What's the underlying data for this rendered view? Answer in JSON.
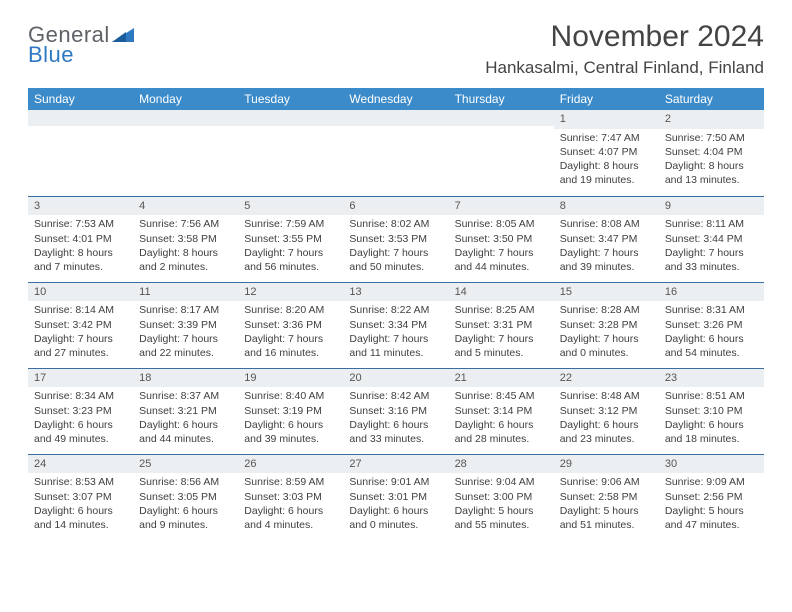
{
  "logo": {
    "line1": "General",
    "line2": "Blue"
  },
  "header": {
    "title": "November 2024",
    "subtitle": "Hankasalmi, Central Finland, Finland"
  },
  "colors": {
    "header_bg": "#3b8bca",
    "header_text": "#ffffff",
    "daynum_bg": "#eceff1",
    "row_border": "#3b6ea0",
    "logo_gray": "#5f6368",
    "logo_blue": "#2f79c2"
  },
  "weekdays": [
    "Sunday",
    "Monday",
    "Tuesday",
    "Wednesday",
    "Thursday",
    "Friday",
    "Saturday"
  ],
  "weeks": [
    [
      {
        "day": "",
        "lines": []
      },
      {
        "day": "",
        "lines": []
      },
      {
        "day": "",
        "lines": []
      },
      {
        "day": "",
        "lines": []
      },
      {
        "day": "",
        "lines": []
      },
      {
        "day": "1",
        "lines": [
          "Sunrise: 7:47 AM",
          "Sunset: 4:07 PM",
          "Daylight: 8 hours",
          "and 19 minutes."
        ]
      },
      {
        "day": "2",
        "lines": [
          "Sunrise: 7:50 AM",
          "Sunset: 4:04 PM",
          "Daylight: 8 hours",
          "and 13 minutes."
        ]
      }
    ],
    [
      {
        "day": "3",
        "lines": [
          "Sunrise: 7:53 AM",
          "Sunset: 4:01 PM",
          "Daylight: 8 hours",
          "and 7 minutes."
        ]
      },
      {
        "day": "4",
        "lines": [
          "Sunrise: 7:56 AM",
          "Sunset: 3:58 PM",
          "Daylight: 8 hours",
          "and 2 minutes."
        ]
      },
      {
        "day": "5",
        "lines": [
          "Sunrise: 7:59 AM",
          "Sunset: 3:55 PM",
          "Daylight: 7 hours",
          "and 56 minutes."
        ]
      },
      {
        "day": "6",
        "lines": [
          "Sunrise: 8:02 AM",
          "Sunset: 3:53 PM",
          "Daylight: 7 hours",
          "and 50 minutes."
        ]
      },
      {
        "day": "7",
        "lines": [
          "Sunrise: 8:05 AM",
          "Sunset: 3:50 PM",
          "Daylight: 7 hours",
          "and 44 minutes."
        ]
      },
      {
        "day": "8",
        "lines": [
          "Sunrise: 8:08 AM",
          "Sunset: 3:47 PM",
          "Daylight: 7 hours",
          "and 39 minutes."
        ]
      },
      {
        "day": "9",
        "lines": [
          "Sunrise: 8:11 AM",
          "Sunset: 3:44 PM",
          "Daylight: 7 hours",
          "and 33 minutes."
        ]
      }
    ],
    [
      {
        "day": "10",
        "lines": [
          "Sunrise: 8:14 AM",
          "Sunset: 3:42 PM",
          "Daylight: 7 hours",
          "and 27 minutes."
        ]
      },
      {
        "day": "11",
        "lines": [
          "Sunrise: 8:17 AM",
          "Sunset: 3:39 PM",
          "Daylight: 7 hours",
          "and 22 minutes."
        ]
      },
      {
        "day": "12",
        "lines": [
          "Sunrise: 8:20 AM",
          "Sunset: 3:36 PM",
          "Daylight: 7 hours",
          "and 16 minutes."
        ]
      },
      {
        "day": "13",
        "lines": [
          "Sunrise: 8:22 AM",
          "Sunset: 3:34 PM",
          "Daylight: 7 hours",
          "and 11 minutes."
        ]
      },
      {
        "day": "14",
        "lines": [
          "Sunrise: 8:25 AM",
          "Sunset: 3:31 PM",
          "Daylight: 7 hours",
          "and 5 minutes."
        ]
      },
      {
        "day": "15",
        "lines": [
          "Sunrise: 8:28 AM",
          "Sunset: 3:28 PM",
          "Daylight: 7 hours",
          "and 0 minutes."
        ]
      },
      {
        "day": "16",
        "lines": [
          "Sunrise: 8:31 AM",
          "Sunset: 3:26 PM",
          "Daylight: 6 hours",
          "and 54 minutes."
        ]
      }
    ],
    [
      {
        "day": "17",
        "lines": [
          "Sunrise: 8:34 AM",
          "Sunset: 3:23 PM",
          "Daylight: 6 hours",
          "and 49 minutes."
        ]
      },
      {
        "day": "18",
        "lines": [
          "Sunrise: 8:37 AM",
          "Sunset: 3:21 PM",
          "Daylight: 6 hours",
          "and 44 minutes."
        ]
      },
      {
        "day": "19",
        "lines": [
          "Sunrise: 8:40 AM",
          "Sunset: 3:19 PM",
          "Daylight: 6 hours",
          "and 39 minutes."
        ]
      },
      {
        "day": "20",
        "lines": [
          "Sunrise: 8:42 AM",
          "Sunset: 3:16 PM",
          "Daylight: 6 hours",
          "and 33 minutes."
        ]
      },
      {
        "day": "21",
        "lines": [
          "Sunrise: 8:45 AM",
          "Sunset: 3:14 PM",
          "Daylight: 6 hours",
          "and 28 minutes."
        ]
      },
      {
        "day": "22",
        "lines": [
          "Sunrise: 8:48 AM",
          "Sunset: 3:12 PM",
          "Daylight: 6 hours",
          "and 23 minutes."
        ]
      },
      {
        "day": "23",
        "lines": [
          "Sunrise: 8:51 AM",
          "Sunset: 3:10 PM",
          "Daylight: 6 hours",
          "and 18 minutes."
        ]
      }
    ],
    [
      {
        "day": "24",
        "lines": [
          "Sunrise: 8:53 AM",
          "Sunset: 3:07 PM",
          "Daylight: 6 hours",
          "and 14 minutes."
        ]
      },
      {
        "day": "25",
        "lines": [
          "Sunrise: 8:56 AM",
          "Sunset: 3:05 PM",
          "Daylight: 6 hours",
          "and 9 minutes."
        ]
      },
      {
        "day": "26",
        "lines": [
          "Sunrise: 8:59 AM",
          "Sunset: 3:03 PM",
          "Daylight: 6 hours",
          "and 4 minutes."
        ]
      },
      {
        "day": "27",
        "lines": [
          "Sunrise: 9:01 AM",
          "Sunset: 3:01 PM",
          "Daylight: 6 hours",
          "and 0 minutes."
        ]
      },
      {
        "day": "28",
        "lines": [
          "Sunrise: 9:04 AM",
          "Sunset: 3:00 PM",
          "Daylight: 5 hours",
          "and 55 minutes."
        ]
      },
      {
        "day": "29",
        "lines": [
          "Sunrise: 9:06 AM",
          "Sunset: 2:58 PM",
          "Daylight: 5 hours",
          "and 51 minutes."
        ]
      },
      {
        "day": "30",
        "lines": [
          "Sunrise: 9:09 AM",
          "Sunset: 2:56 PM",
          "Daylight: 5 hours",
          "and 47 minutes."
        ]
      }
    ]
  ]
}
